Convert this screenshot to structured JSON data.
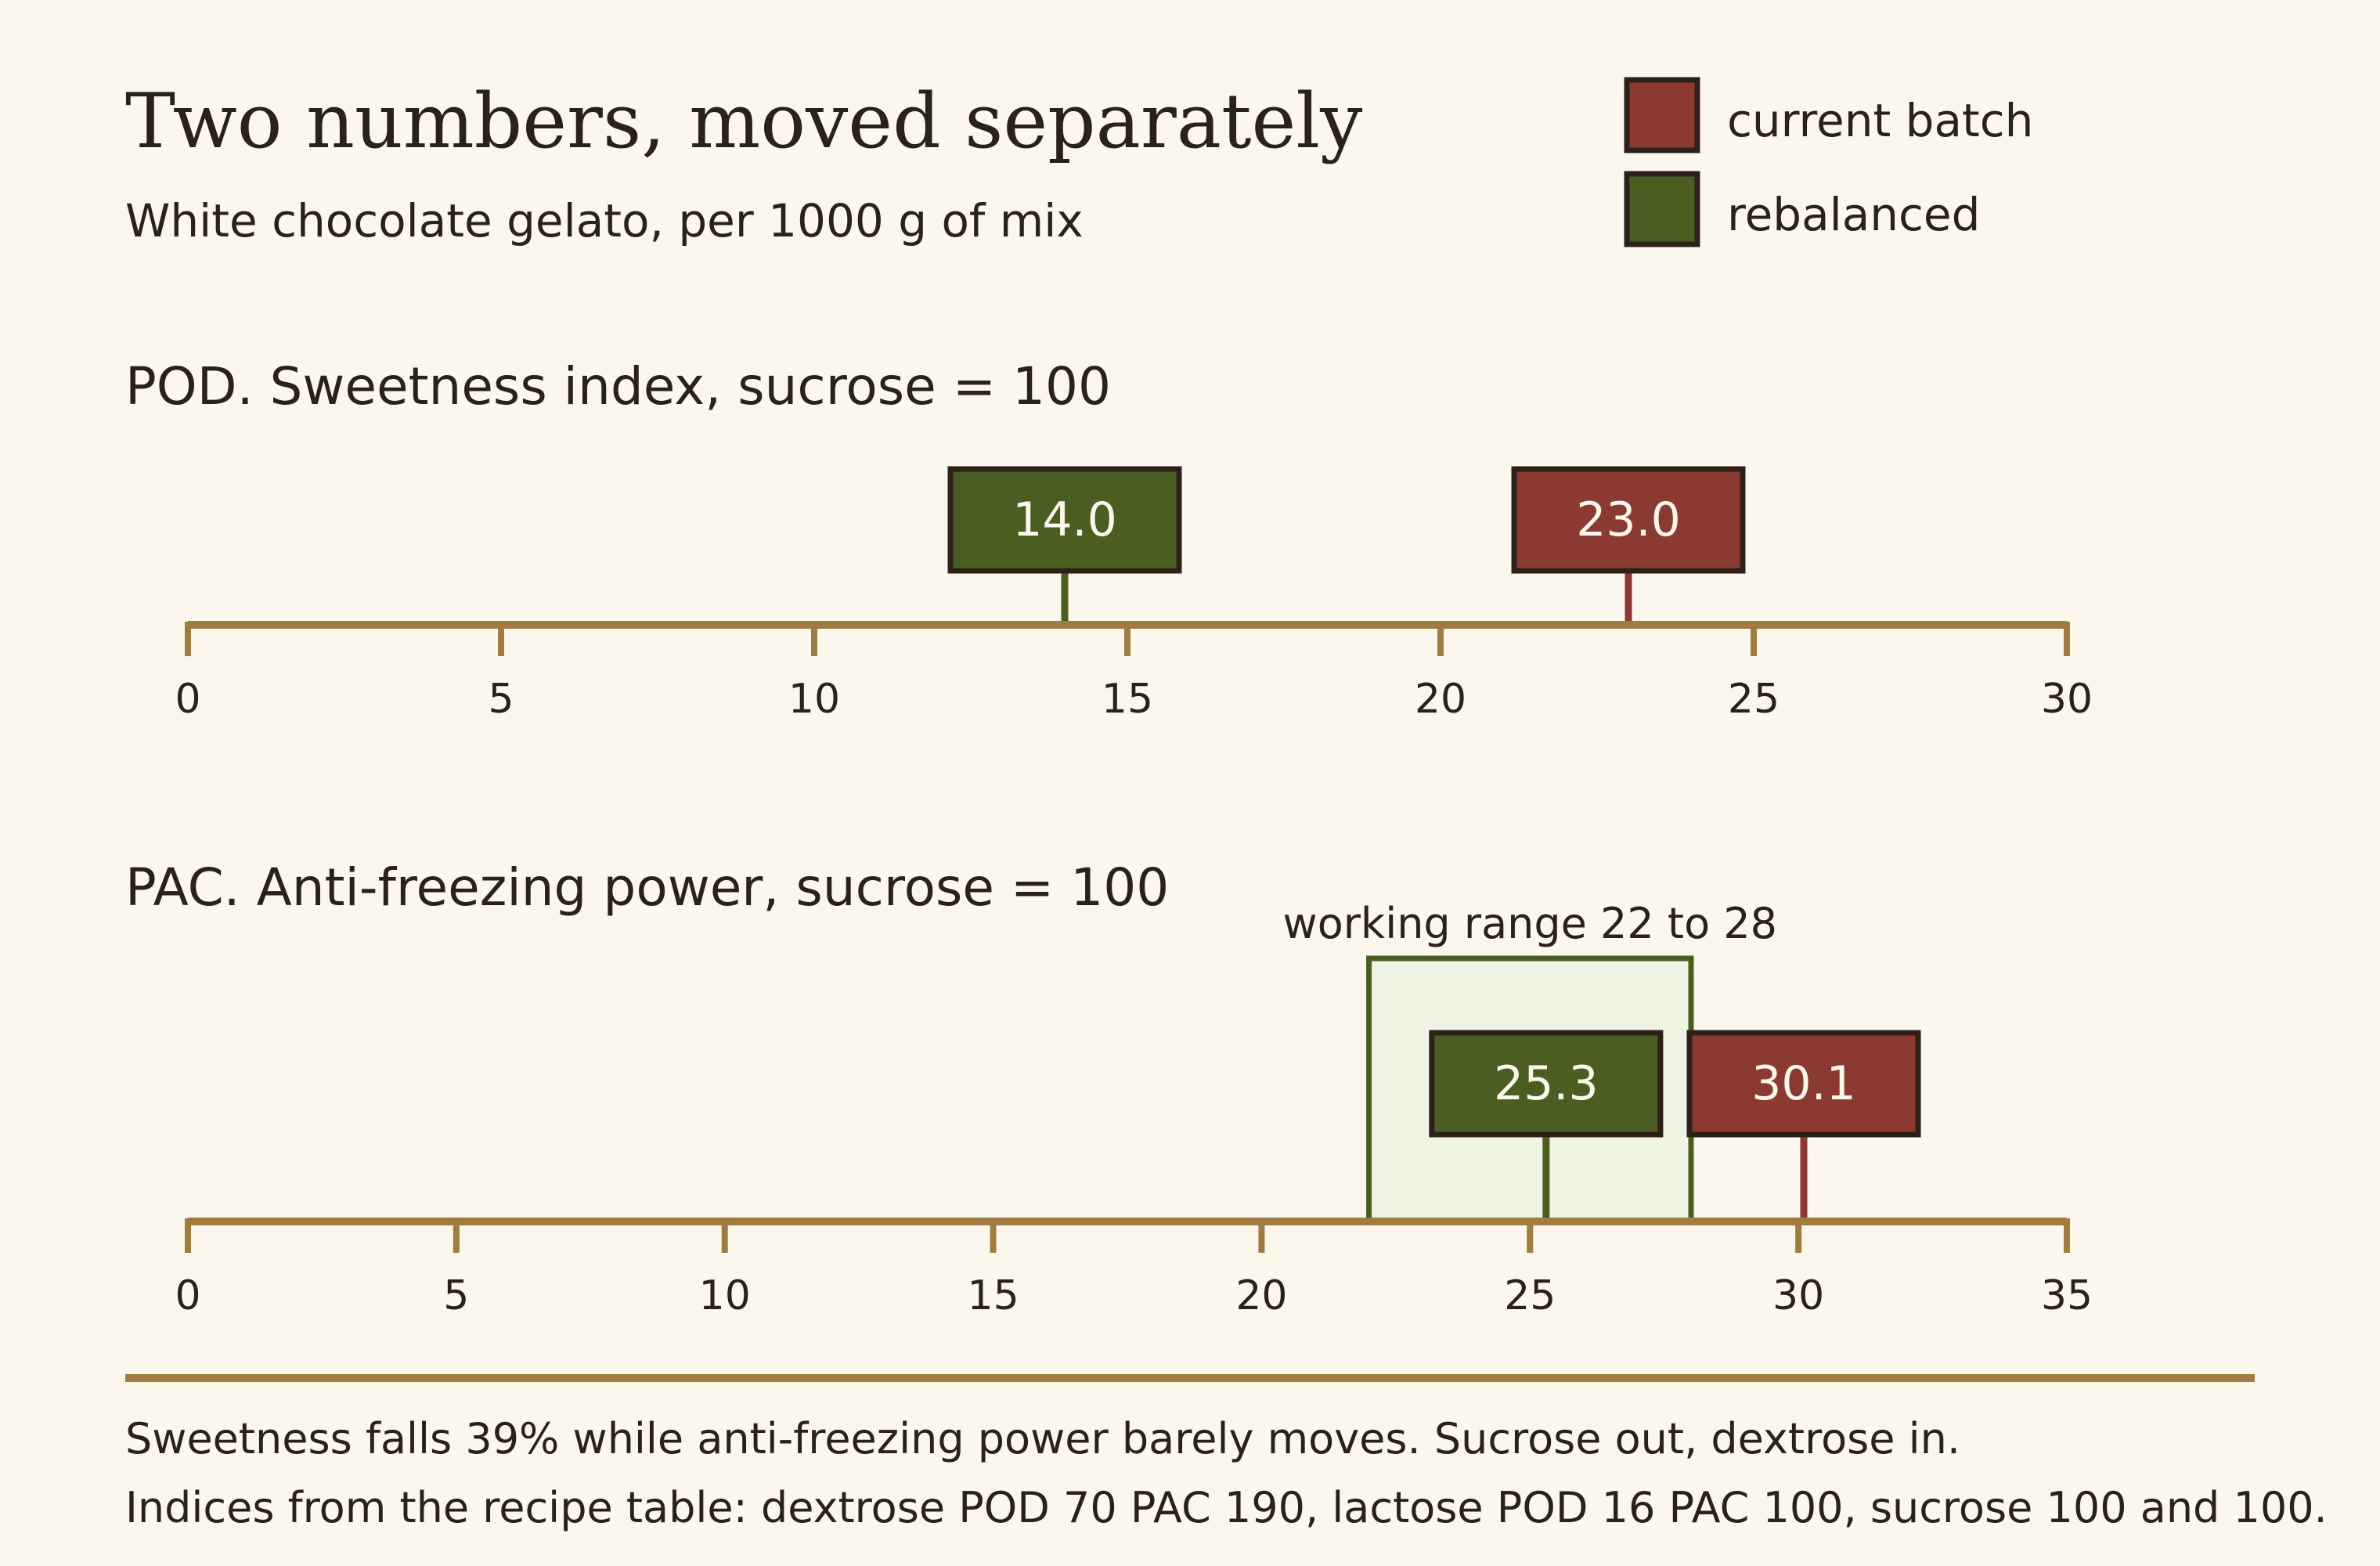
{
  "header": {
    "title": "Two numbers, moved separately",
    "subtitle": "White chocolate gelato, per 1000 g of mix"
  },
  "legend": [
    {
      "label": "current batch",
      "color": "#8b3a31"
    },
    {
      "label": "rebalanced",
      "color": "#4a5e22"
    }
  ],
  "colors": {
    "axis": "#a07c40",
    "current": "#8b3a31",
    "rebalanced": "#4a5e22",
    "box_border": "#2e2018",
    "range_fill": "#eff3e4",
    "range_stroke": "#4a5e22",
    "background": "#fcf7ec"
  },
  "chart_data": [
    {
      "type": "dot-strip",
      "title": "POD. Sweetness index, sucrose = 100",
      "xlim": [
        0,
        30
      ],
      "ticks": [
        0,
        5,
        10,
        15,
        20,
        25,
        30
      ],
      "series": [
        {
          "name": "current batch",
          "value": 23.0,
          "label": "23.0"
        },
        {
          "name": "rebalanced",
          "value": 14.0,
          "label": "14.0"
        }
      ]
    },
    {
      "type": "dot-strip",
      "title": "PAC. Anti-freezing power, sucrose = 100",
      "xlim": [
        0,
        35
      ],
      "ticks": [
        0,
        5,
        10,
        15,
        20,
        25,
        30,
        35
      ],
      "band": {
        "from": 22,
        "to": 28,
        "label": "working range 22 to 28"
      },
      "series": [
        {
          "name": "current batch",
          "value": 30.1,
          "label": "30.1"
        },
        {
          "name": "rebalanced",
          "value": 25.3,
          "label": "25.3"
        }
      ]
    }
  ],
  "footnotes": [
    "Sweetness falls 39% while anti-freezing power barely moves. Sucrose out, dextrose in.",
    "Indices from the recipe table: dextrose POD 70 PAC 190, lactose POD 16 PAC 100, sucrose 100 and 100."
  ]
}
